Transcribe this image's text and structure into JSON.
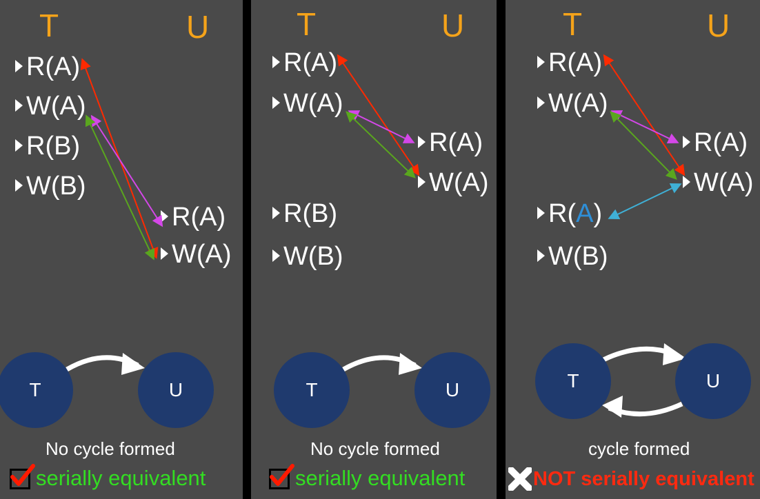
{
  "panels": [
    {
      "header": {
        "t": "T",
        "u": "U"
      },
      "t_ops": [
        {
          "op": "R(",
          "var": "A",
          "close": ")"
        },
        {
          "op": "W(",
          "var": "A",
          "close": ")"
        },
        {
          "op": "R(",
          "var": "B",
          "close": ")"
        },
        {
          "op": "W(",
          "var": "B",
          "close": ")"
        }
      ],
      "u_ops": [
        {
          "op": "R(",
          "var": "A",
          "close": ")"
        },
        {
          "op": "W(",
          "var": "A",
          "close": ")"
        }
      ],
      "graph": {
        "node_t": "T",
        "node_u": "U"
      },
      "caption": "No cycle formed",
      "verdict": "serially equivalent"
    },
    {
      "header": {
        "t": "T",
        "u": "U"
      },
      "t_ops": [
        {
          "op": "R(",
          "var": "A",
          "close": ")"
        },
        {
          "op": "W(",
          "var": "A",
          "close": ")"
        },
        {
          "op": "R(",
          "var": "B",
          "close": ")"
        },
        {
          "op": "W(",
          "var": "B",
          "close": ")"
        }
      ],
      "u_ops": [
        {
          "op": "R(",
          "var": "A",
          "close": ")"
        },
        {
          "op": "W(",
          "var": "A",
          "close": ")"
        }
      ],
      "graph": {
        "node_t": "T",
        "node_u": "U"
      },
      "caption": "No cycle formed",
      "verdict": "serially equivalent"
    },
    {
      "header": {
        "t": "T",
        "u": "U"
      },
      "t_ops": [
        {
          "op": "R(",
          "var": "A",
          "close": ")"
        },
        {
          "op": "W(",
          "var": "A",
          "close": ")"
        },
        {
          "op": "R(",
          "var": "A",
          "close": ")"
        },
        {
          "op": "W(",
          "var": "B",
          "close": ")"
        }
      ],
      "u_ops": [
        {
          "op": "R(",
          "var": "A",
          "close": ")"
        },
        {
          "op": "W(",
          "var": "A",
          "close": ")"
        }
      ],
      "graph": {
        "node_t": "T",
        "node_u": "U"
      },
      "caption": "cycle formed",
      "verdict": "NOT serially equivalent"
    }
  ],
  "colors": {
    "background": "#4a4a4a",
    "header": "#f5a31a",
    "node": "#1f3a6e",
    "arrow_red": "#ff2a00",
    "arrow_magenta": "#d447e8",
    "arrow_green": "#5aa61e",
    "arrow_blue": "#3fb0d6",
    "highlight_var": "#2e8fd8",
    "verdict_ok": "#33dd22",
    "verdict_bad": "#ff2a10"
  },
  "icons": {
    "ok": "checkbox-check-icon",
    "bad": "x-mark-icon"
  }
}
